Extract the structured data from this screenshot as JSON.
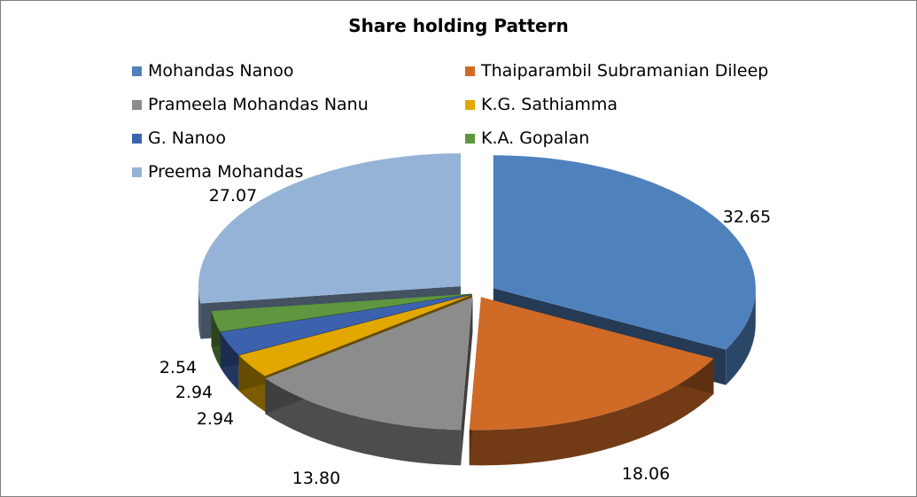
{
  "chart_data": {
    "type": "pie",
    "title": "Share holding  Pattern",
    "categories": [
      "Mohandas Nanoo",
      "Thaiparambil Subramanian Dileep",
      "Prameela Mohandas Nanu",
      "K.G. Sathiamma",
      "G. Nanoo",
      "K.A. Gopalan",
      "Preema Mohandas"
    ],
    "values": [
      32.65,
      18.06,
      13.8,
      2.94,
      2.94,
      2.54,
      27.07
    ],
    "value_labels": [
      "32.65",
      "18.06",
      "13.80",
      "2.94",
      "2.94",
      "2.54",
      "27.07"
    ],
    "colors": [
      "#4f81bd",
      "#d06a27",
      "#8c8c8c",
      "#e2a800",
      "#3d62ad",
      "#5f9640",
      "#95b3d7"
    ],
    "legend_position": "top",
    "style": "3d-exploded"
  }
}
